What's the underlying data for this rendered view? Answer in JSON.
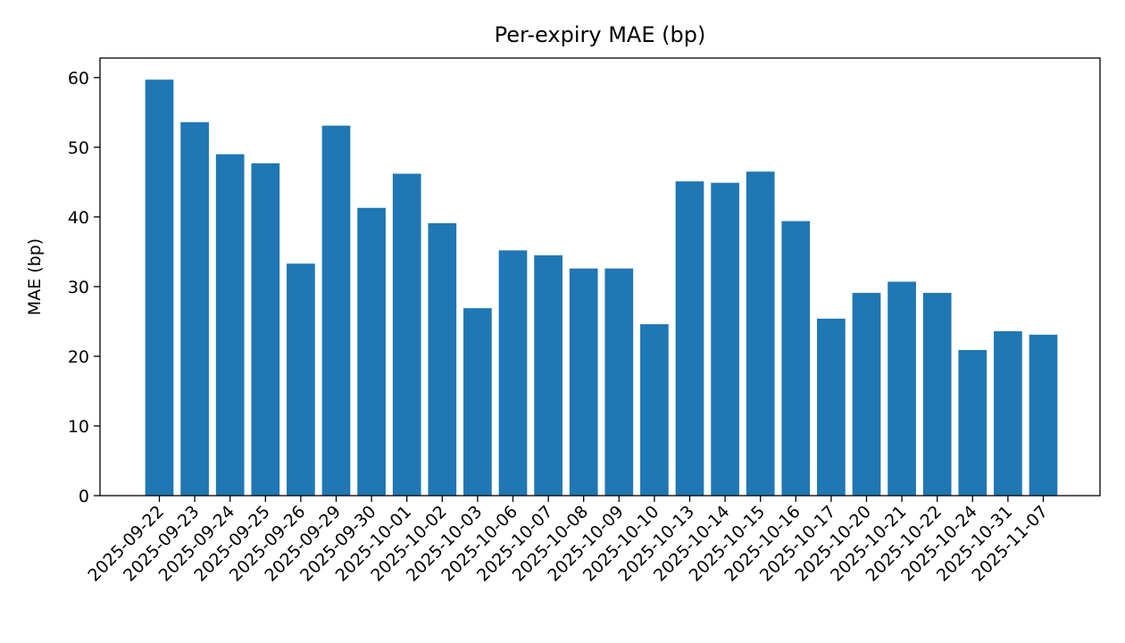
{
  "chart_data": {
    "type": "bar",
    "title": "Per-expiry MAE (bp)",
    "xlabel": "",
    "ylabel": "MAE (bp)",
    "ylim": [
      0,
      62.8
    ],
    "yticks": [
      0,
      10,
      20,
      30,
      40,
      50,
      60
    ],
    "grid": false,
    "color": "#1f77b4",
    "categories": [
      "2025-09-22",
      "2025-09-23",
      "2025-09-24",
      "2025-09-25",
      "2025-09-26",
      "2025-09-29",
      "2025-09-30",
      "2025-10-01",
      "2025-10-02",
      "2025-10-03",
      "2025-10-06",
      "2025-10-07",
      "2025-10-08",
      "2025-10-09",
      "2025-10-10",
      "2025-10-13",
      "2025-10-14",
      "2025-10-15",
      "2025-10-16",
      "2025-10-17",
      "2025-10-20",
      "2025-10-21",
      "2025-10-22",
      "2025-10-24",
      "2025-10-31",
      "2025-11-07"
    ],
    "values": [
      59.7,
      53.6,
      49.0,
      47.7,
      33.3,
      53.1,
      41.3,
      46.2,
      39.1,
      26.9,
      35.2,
      34.5,
      32.6,
      32.6,
      24.6,
      45.1,
      44.9,
      46.5,
      39.4,
      25.4,
      29.1,
      30.7,
      29.1,
      20.9,
      23.6,
      23.1
    ]
  }
}
